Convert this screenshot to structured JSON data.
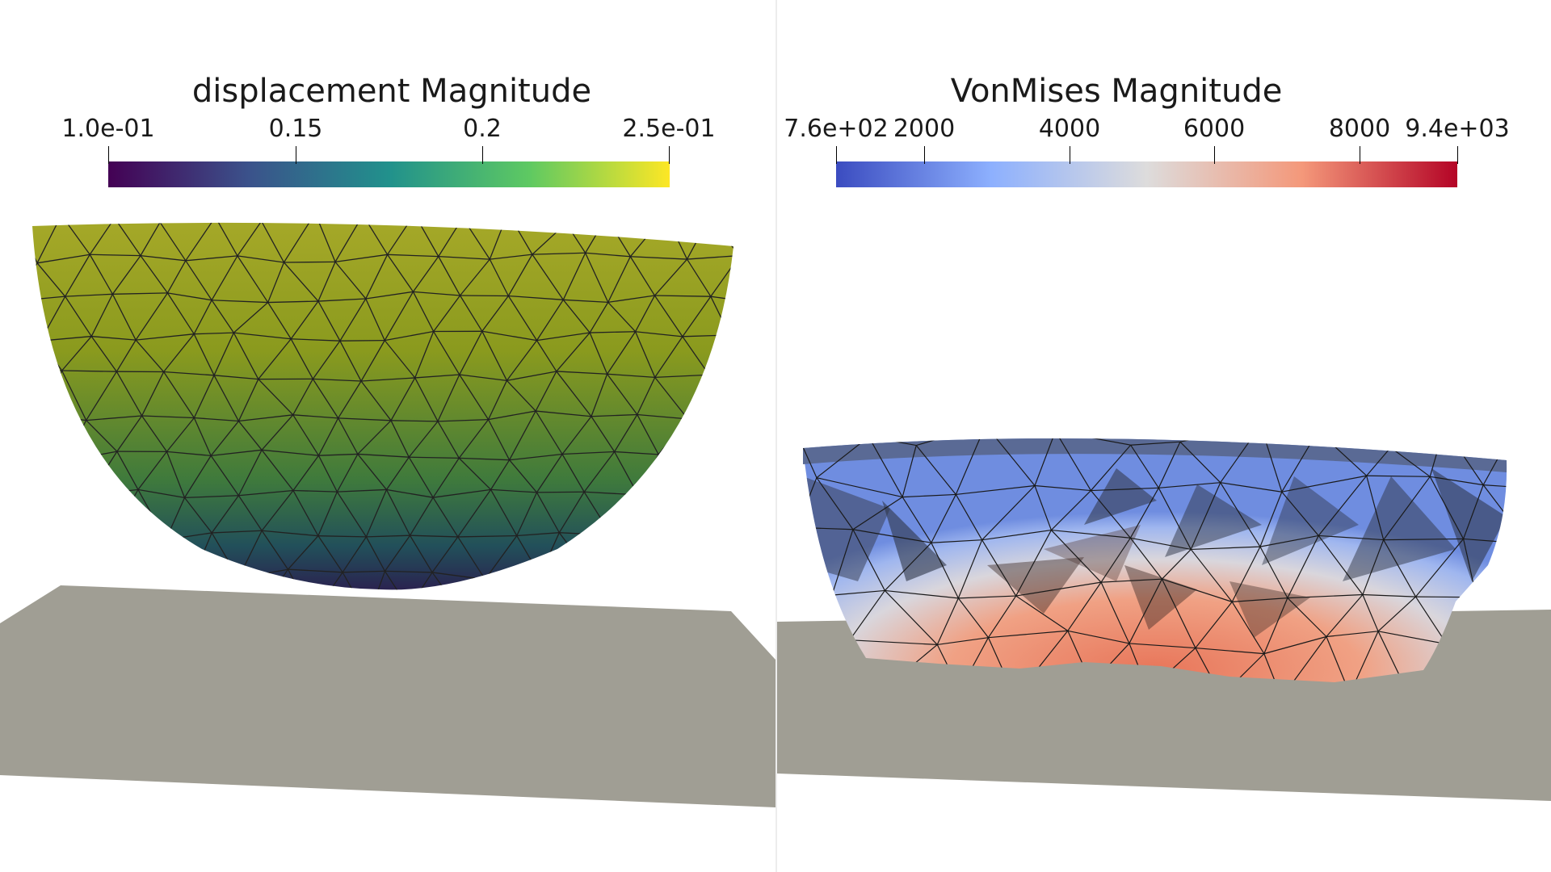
{
  "left_view": {
    "colorbar": {
      "title": "displacement Magnitude",
      "ticks": [
        "1.0e-01",
        "0.15",
        "0.2",
        "2.5e-01"
      ],
      "colormap": "viridis",
      "stops": [
        "#440154",
        "#3b528b",
        "#21918c",
        "#5ec962",
        "#fde725"
      ]
    },
    "object": "hemisphere-mesh",
    "surface_color": "#8a9a1e",
    "ground_color": "#a09e94"
  },
  "right_view": {
    "colorbar": {
      "title": "VonMises Magnitude",
      "ticks": [
        "7.6e+02",
        "2000",
        "4000",
        "6000",
        "8000",
        "9.4e+03"
      ],
      "colormap": "coolwarm",
      "stops": [
        "#3b4cc0",
        "#8db0fe",
        "#dddcdc",
        "#f4987a",
        "#b40426"
      ]
    },
    "object": "deformed-mesh",
    "ground_color": "#a09e94"
  }
}
